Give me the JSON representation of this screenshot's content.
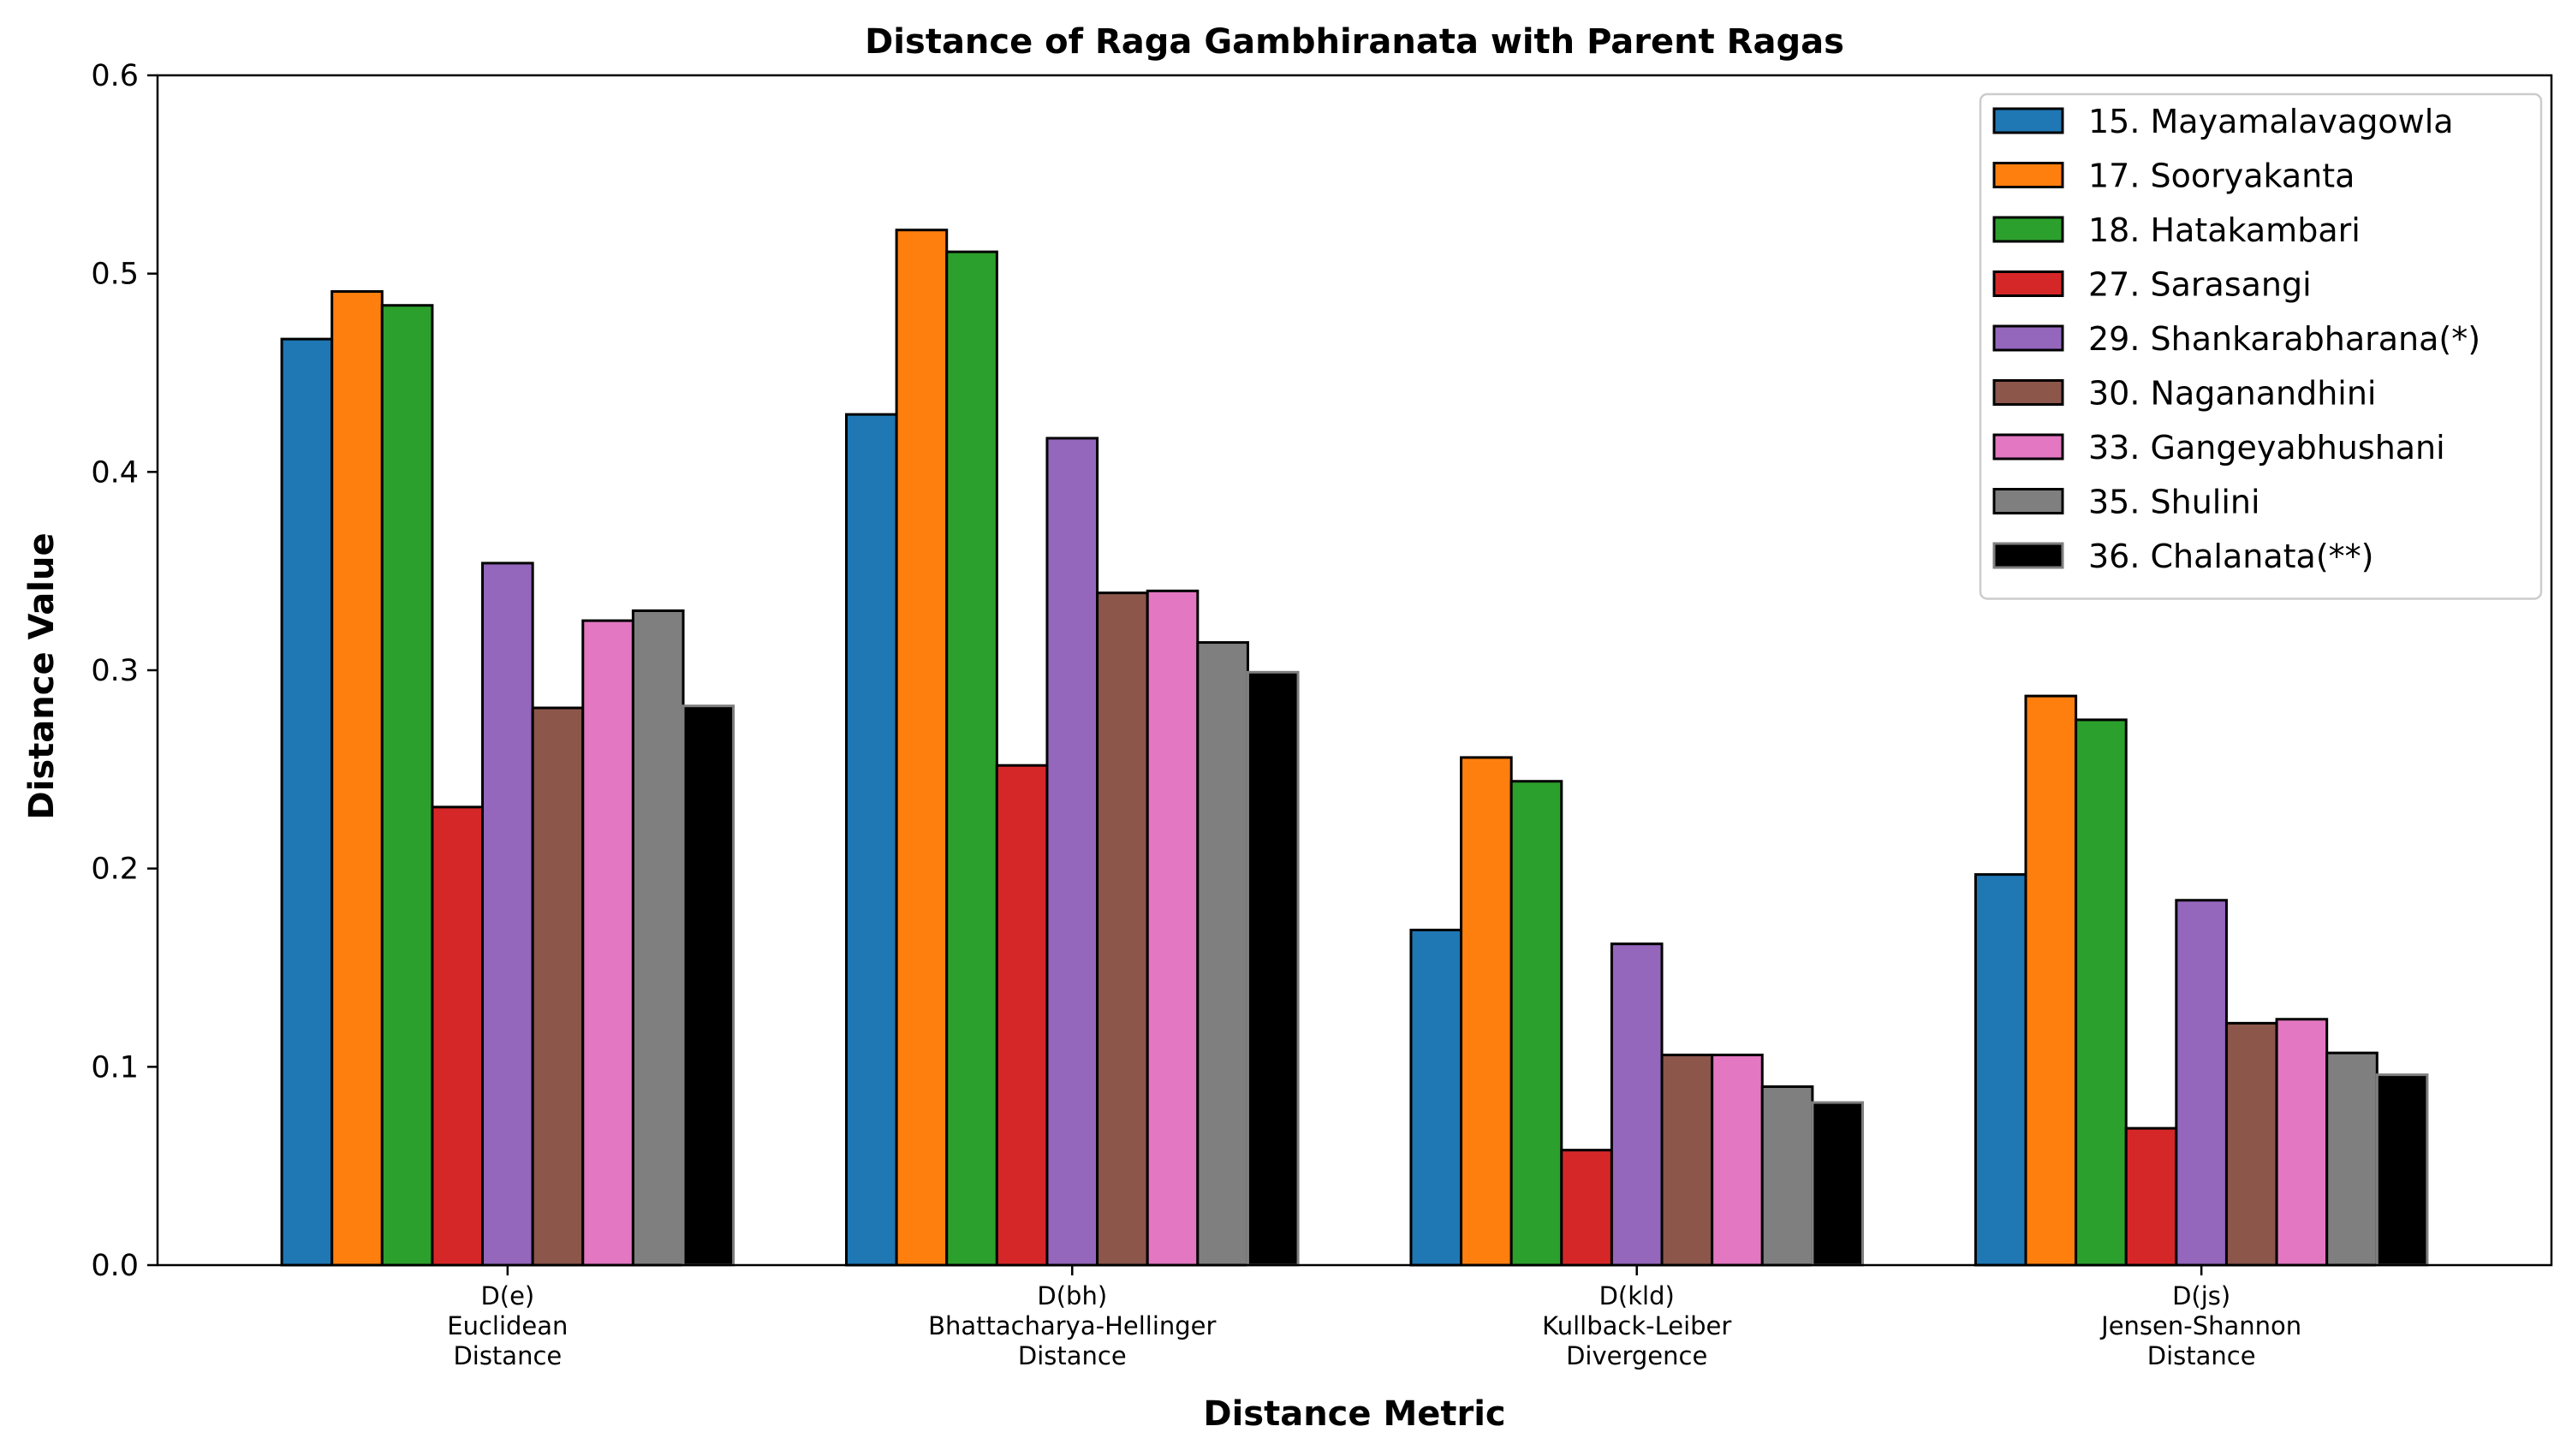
{
  "chart_data": {
    "type": "bar",
    "title": "Distance of Raga Gambhiranata with Parent Ragas",
    "xlabel": "Distance Metric",
    "ylabel": "Distance Value",
    "ylim": [
      0,
      0.6
    ],
    "yticks": [
      "0.0",
      "0.1",
      "0.2",
      "0.3",
      "0.4",
      "0.5",
      "0.6"
    ],
    "grid": false,
    "legend_position": "top-right",
    "categories": [
      [
        "D(e)",
        "Euclidean",
        "Distance"
      ],
      [
        "D(bh)",
        "Bhattacharya-Hellinger",
        "Distance"
      ],
      [
        "D(kld)",
        "Kullback-Leiber",
        "Divergence"
      ],
      [
        "D(js)",
        "Jensen-Shannon",
        "Distance"
      ]
    ],
    "series": [
      {
        "name": "15. Mayamalavagowla",
        "color": "#1f77b4",
        "values": [
          0.467,
          0.429,
          0.169,
          0.197
        ]
      },
      {
        "name": "17. Sooryakanta",
        "color": "#ff7f0e",
        "values": [
          0.491,
          0.522,
          0.256,
          0.287
        ]
      },
      {
        "name": "18. Hatakambari",
        "color": "#2ca02c",
        "values": [
          0.484,
          0.511,
          0.244,
          0.275
        ]
      },
      {
        "name": "27. Sarasangi",
        "color": "#d62728",
        "values": [
          0.231,
          0.252,
          0.058,
          0.069
        ]
      },
      {
        "name": "29. Shankarabharana(*)",
        "color": "#9467bd",
        "values": [
          0.354,
          0.417,
          0.162,
          0.184
        ]
      },
      {
        "name": "30. Naganandhini",
        "color": "#8c564b",
        "values": [
          0.281,
          0.339,
          0.106,
          0.122
        ]
      },
      {
        "name": "33. Gangeyabhushani",
        "color": "#e377c2",
        "values": [
          0.325,
          0.34,
          0.106,
          0.124
        ]
      },
      {
        "name": "35. Shulini",
        "color": "#7f7f7f",
        "values": [
          0.33,
          0.314,
          0.09,
          0.107
        ]
      },
      {
        "name": "36. Chalanata(**)",
        "color": "#000000",
        "values": [
          0.282,
          0.299,
          0.082,
          0.096
        ]
      }
    ]
  }
}
